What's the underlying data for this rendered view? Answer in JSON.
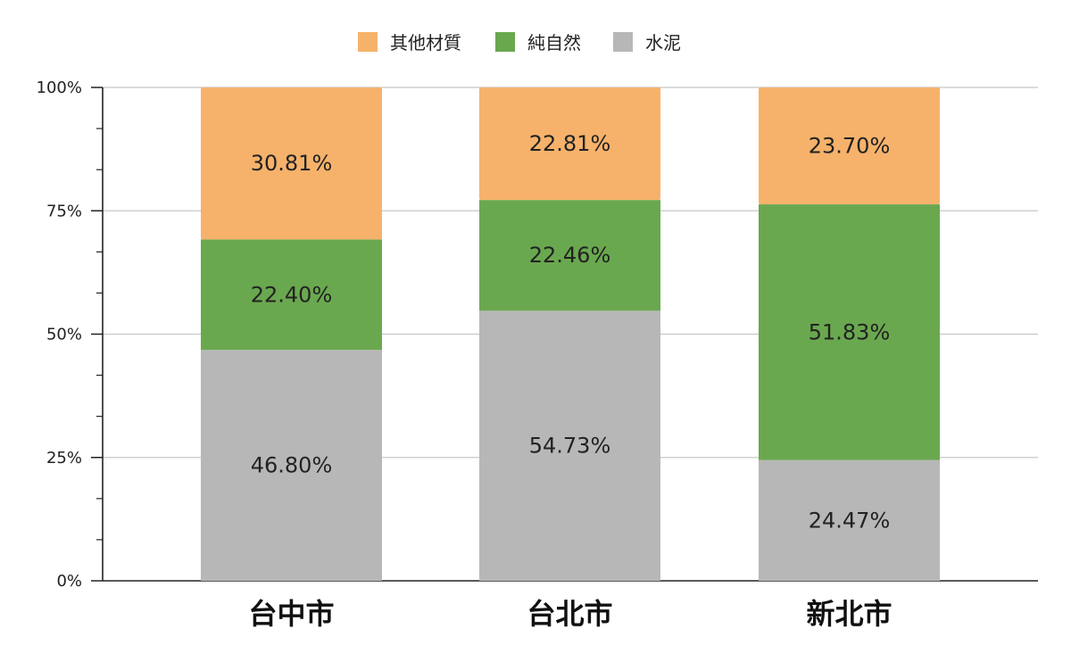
{
  "chart_data": {
    "type": "bar",
    "stacked": true,
    "percent_stacked": true,
    "title": "",
    "xlabel": "",
    "ylabel": "",
    "categories": [
      "台中市",
      "台北市",
      "新北市"
    ],
    "yticks": [
      "0%",
      "25%",
      "50%",
      "75%",
      "100%"
    ],
    "ylim": [
      0,
      100
    ],
    "grid": true,
    "legend": "top-center",
    "series": [
      {
        "name": "水泥",
        "values": [
          46.8,
          54.73,
          24.47
        ],
        "labels": [
          "46.80%",
          "54.73%",
          "24.47%"
        ],
        "color": "#B7B7B7"
      },
      {
        "name": "純自然",
        "values": [
          22.4,
          22.46,
          51.83
        ],
        "labels": [
          "22.40%",
          "22.46%",
          "51.83%"
        ],
        "color": "#6AA84F"
      },
      {
        "name": "其他材質",
        "values": [
          30.81,
          22.81,
          23.7
        ],
        "labels": [
          "30.81%",
          "22.81%",
          "23.70%"
        ],
        "color": "#F6B26B"
      }
    ],
    "legend_order": [
      "其他材質",
      "純自然",
      "水泥"
    ]
  }
}
